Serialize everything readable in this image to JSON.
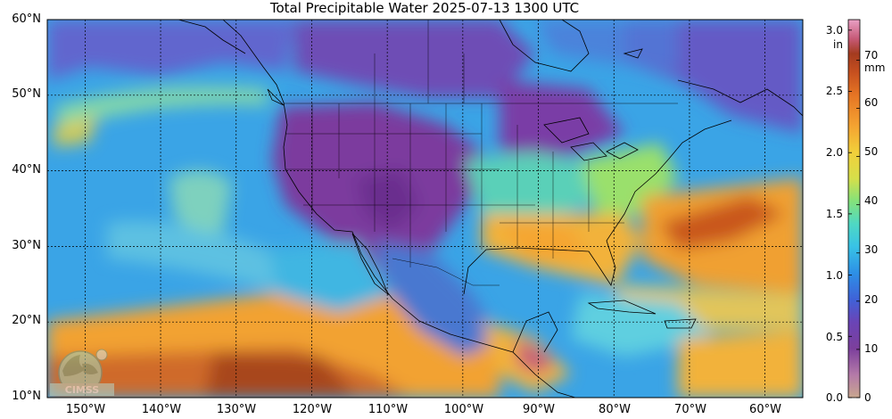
{
  "title": "Total Precipitable Water  2025-07-13 1300 UTC",
  "logo_text": "CIMSS",
  "map": {
    "lon_range": [
      -155,
      -55
    ],
    "lat_range": [
      10,
      60
    ],
    "lat_labels": [
      "10°N",
      "20°N",
      "30°N",
      "40°N",
      "50°N",
      "60°N"
    ],
    "lon_labels": [
      "150°W",
      "140°W",
      "130°W",
      "120°W",
      "110°W",
      "100°W",
      "90°W",
      "80°W",
      "70°W",
      "60°W"
    ],
    "grid": true,
    "grid_style": "dashed black",
    "ocean_base_color": "#3aa4e6"
  },
  "colorbar": {
    "in_labels": [
      "0.0",
      "0.5",
      "1.0",
      "1.5",
      "2.0",
      "2.5",
      "3.0"
    ],
    "in_unit": "in",
    "mm_labels": [
      "0",
      "10",
      "20",
      "30",
      "40",
      "50",
      "60",
      "70"
    ],
    "mm_unit": "mm",
    "colors": [
      "#c8b49b",
      "#b07aa8",
      "#7d3f9a",
      "#6b3fb0",
      "#3f5fd6",
      "#2b8fe6",
      "#36c2e8",
      "#4fd6c6",
      "#7ee07a",
      "#d2e04a",
      "#f0d23a",
      "#f5a531",
      "#ea7a24",
      "#c9521f",
      "#a63a1e",
      "#c24d68",
      "#e58fb8"
    ]
  }
}
